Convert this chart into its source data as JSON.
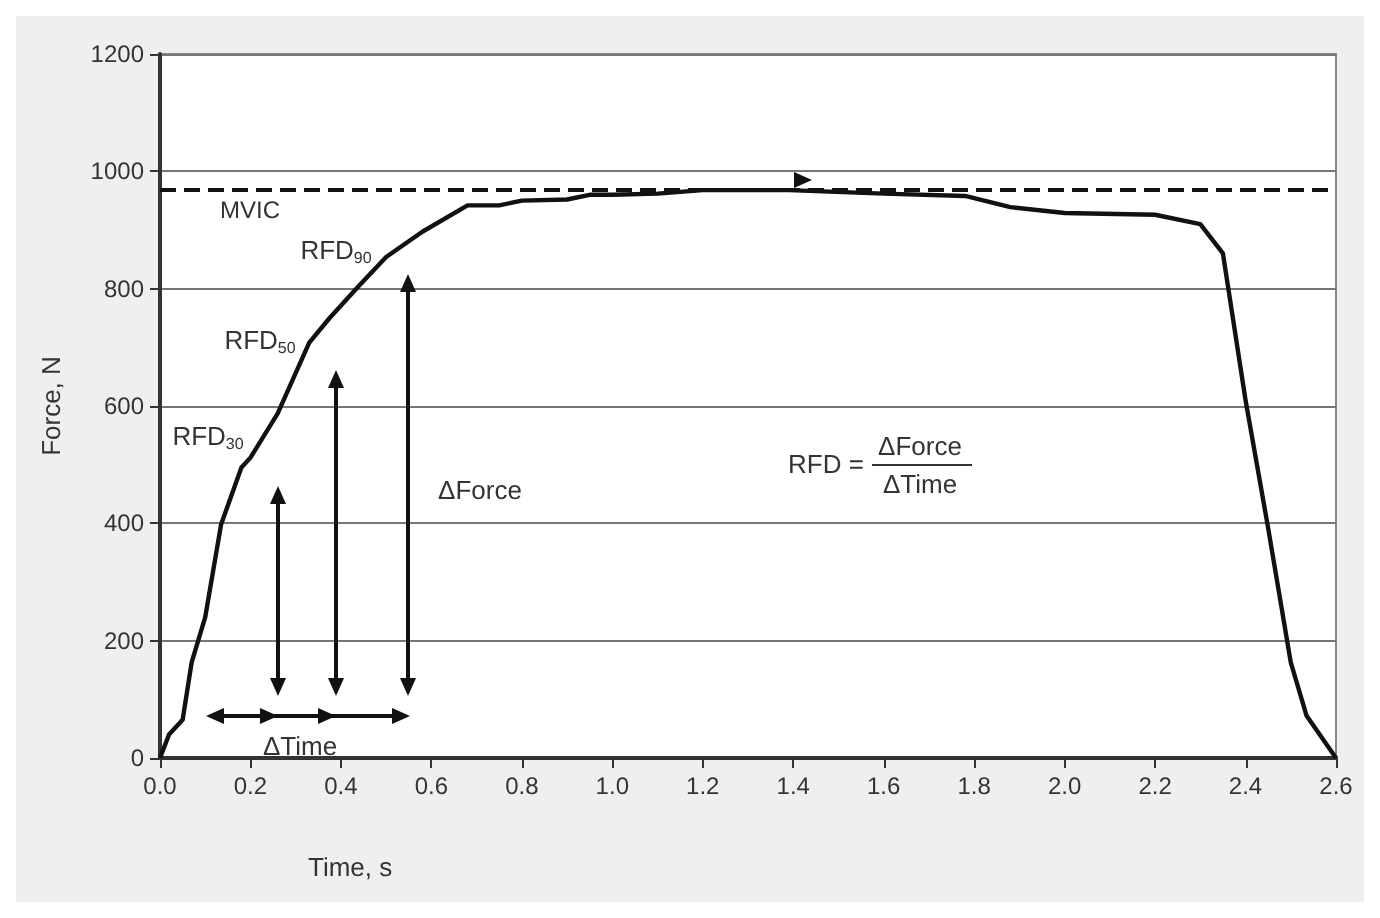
{
  "chart_data": {
    "type": "line",
    "xlabel": "Time, s",
    "ylabel": "Force, N",
    "x": [
      0,
      0.02,
      0.05,
      0.07,
      0.1,
      0.135,
      0.18,
      0.2,
      0.26,
      0.33,
      0.375,
      0.44,
      0.5,
      0.58,
      0.68,
      0.75,
      0.8,
      0.9,
      0.95,
      1.0,
      1.1,
      1.2,
      1.39,
      1.6,
      1.78,
      1.88,
      2.0,
      2.2,
      2.3,
      2.35,
      2.4,
      2.45,
      2.5,
      2.535,
      2.6
    ],
    "series": [
      {
        "color": "#111111",
        "values": [
          0,
          40,
          65,
          163,
          240,
          398,
          495,
          512,
          587,
          708,
          750,
          805,
          854,
          897,
          942,
          942,
          950,
          952,
          960,
          960,
          962,
          968,
          968,
          962,
          958,
          939,
          929,
          926,
          910,
          860,
          610,
          392,
          163,
          72,
          0
        ]
      }
    ],
    "xlim": [
      0,
      2.6
    ],
    "xticks": [
      {
        "value": 0,
        "label": "0.0"
      },
      {
        "value": 0.2,
        "label": "0.2"
      },
      {
        "value": 0.4,
        "label": "0.4"
      },
      {
        "value": 0.6,
        "label": "0.6"
      },
      {
        "value": 0.8,
        "label": "0.8"
      },
      {
        "value": 1,
        "label": "1.0"
      },
      {
        "value": 1.2,
        "label": "1.2"
      },
      {
        "value": 1.4,
        "label": "1.4"
      },
      {
        "value": 1.6,
        "label": "1.6"
      },
      {
        "value": 1.8,
        "label": "1.8"
      },
      {
        "value": 2,
        "label": "2.0"
      },
      {
        "value": 2.2,
        "label": "2.2"
      },
      {
        "value": 2.4,
        "label": "2.4"
      },
      {
        "value": 2.6,
        "label": "2.6"
      }
    ],
    "ylim": [
      0,
      1200
    ],
    "yticks": [
      0,
      200,
      400,
      600,
      800,
      1000,
      1200
    ],
    "grid": "y",
    "marker": "none",
    "line_style": "solid",
    "ref_lines": [
      {
        "axis": "y",
        "value": 968,
        "label": "MVIC",
        "color": "#111111",
        "line_style": "dashed"
      }
    ],
    "annotations": [
      "RFD$_{90}$",
      "RFD$_{50}$",
      "RFD$_{30}$",
      "ΔForce",
      "ΔTime",
      "RFD =",
      "ΔForce",
      "ΔTime"
    ]
  }
}
